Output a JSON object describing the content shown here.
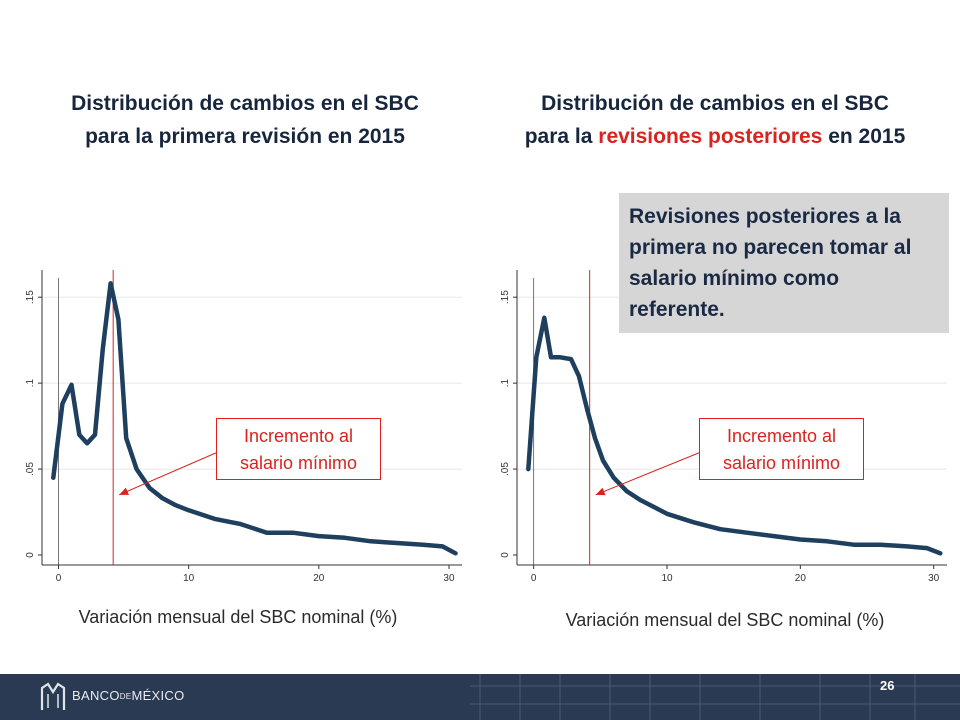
{
  "titles": {
    "left_line1": "Distribución de cambios en el SBC",
    "left_line2": "para la primera revisión en 2015",
    "right_line1": "Distribución de cambios en el SBC",
    "right_line2_pre": "para la ",
    "right_line2_hl": "revisiones posteriores",
    "right_line2_post": " en 2015"
  },
  "note": "Revisiones posteriores a la primera no parecen tomar al salario mínimo como referente.",
  "colors": {
    "line": "#1f3f5f",
    "accent": "#d9231f",
    "footer": "#2a3a52"
  },
  "footer": {
    "logo_pre": "BANCO",
    "logo_mid": "DE",
    "logo_post": "MÉXICO",
    "page_number": "26"
  },
  "chart_data": [
    {
      "type": "line",
      "xlabel": "Variación mensual del SBC nominal (%)",
      "xlim": [
        -0.5,
        31
      ],
      "ylim": [
        0,
        0.16
      ],
      "xticks": [
        0,
        10,
        20,
        30
      ],
      "xtick_labels": [
        "0",
        "10",
        "20",
        "30"
      ],
      "yticks": [
        0,
        0.05,
        0.1,
        0.15
      ],
      "ytick_labels": [
        "0",
        ".05",
        ".1",
        ".15"
      ],
      "reference_line_x": 4.2,
      "annotation": "Incremento al salario mínimo",
      "x": [
        -0.4,
        0.3,
        1.0,
        1.6,
        2.2,
        2.8,
        3.4,
        4.0,
        4.6,
        5.2,
        6.0,
        7.0,
        8.0,
        9.0,
        10.0,
        12.0,
        14.0,
        16.0,
        18.0,
        20.0,
        22.0,
        24.0,
        26.0,
        28.0,
        29.5,
        30.5
      ],
      "y": [
        0.045,
        0.088,
        0.099,
        0.07,
        0.065,
        0.07,
        0.12,
        0.158,
        0.137,
        0.068,
        0.05,
        0.039,
        0.033,
        0.029,
        0.026,
        0.021,
        0.018,
        0.013,
        0.013,
        0.011,
        0.01,
        0.008,
        0.007,
        0.006,
        0.005,
        0.001
      ]
    },
    {
      "type": "line",
      "xlabel": "Variación mensual del SBC nominal (%)",
      "xlim": [
        -0.5,
        31
      ],
      "ylim": [
        0,
        0.16
      ],
      "xticks": [
        0,
        10,
        20,
        30
      ],
      "xtick_labels": [
        "0",
        "10",
        "20",
        "30"
      ],
      "yticks": [
        0,
        0.05,
        0.1,
        0.15
      ],
      "ytick_labels": [
        "0",
        ".05",
        ".1",
        ".15"
      ],
      "reference_line_x": 4.2,
      "annotation": "Incremento al salario mínimo",
      "x": [
        -0.4,
        0.2,
        0.8,
        1.3,
        2.0,
        2.8,
        3.4,
        4.0,
        4.6,
        5.2,
        6.0,
        7.0,
        8.0,
        9.0,
        10.0,
        12.0,
        14.0,
        16.0,
        18.0,
        20.0,
        22.0,
        24.0,
        26.0,
        28.0,
        29.5,
        30.5
      ],
      "y": [
        0.05,
        0.115,
        0.138,
        0.115,
        0.115,
        0.114,
        0.104,
        0.085,
        0.068,
        0.055,
        0.045,
        0.037,
        0.032,
        0.028,
        0.024,
        0.019,
        0.015,
        0.013,
        0.011,
        0.009,
        0.008,
        0.006,
        0.006,
        0.005,
        0.004,
        0.001
      ]
    }
  ]
}
